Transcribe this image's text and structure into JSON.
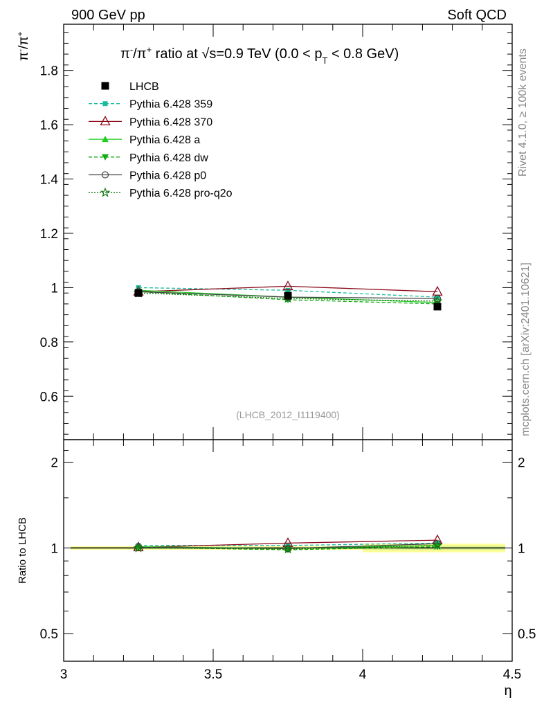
{
  "header": {
    "left": "900 GeV pp",
    "right": "Soft QCD"
  },
  "side_labels": {
    "rivet": "Rivet 4.1.0, ≥ 100k events",
    "mcplots": "mcplots.cern.ch [arXiv:2401.10621]"
  },
  "chart_data": [
    {
      "panel": "main",
      "type": "line",
      "title": "π⁻/π⁺ ratio at √s=0.9 TeV (0.0 < pT < 0.8 GeV)",
      "title_parts": {
        "prefix": "π",
        "sup1": "-",
        "mid": "/π",
        "sup2": "+",
        "text1": " ratio at ",
        "sqrt": "√s",
        "text2": "=0.9 TeV (0.0 < p",
        "sub": "T",
        "text3": " < 0.8 GeV)"
      },
      "ylabel_parts": {
        "a": "π",
        "a_sup": "-",
        "b": "/π",
        "b_sup": "+"
      },
      "xlabel": "η",
      "xlim": [
        3.0,
        4.5
      ],
      "ylim": [
        0.44,
        1.97
      ],
      "yticks": [
        0.6,
        0.8,
        1,
        1.2,
        1.4,
        1.6,
        1.8
      ],
      "ytick_labels": [
        "0.6",
        "0.8",
        "1",
        "1.2",
        "1.4",
        "1.6",
        "1.8"
      ],
      "watermark": "(LHCB_2012_I1119400)",
      "x": [
        3.25,
        3.75,
        4.25
      ],
      "series": [
        {
          "name": "LHCB",
          "values": [
            0.98,
            0.97,
            0.93
          ],
          "errors": [
            0.01,
            0.01,
            0.01
          ],
          "color": "#000000",
          "marker": "square",
          "line": "none"
        },
        {
          "name": "Pythia 6.428 359",
          "values": [
            1.0,
            0.99,
            0.965
          ],
          "color": "#1abc9c",
          "marker": "small-square",
          "line": "dashed"
        },
        {
          "name": "Pythia 6.428 370",
          "values": [
            0.985,
            1.005,
            0.985
          ],
          "color": "#8b0a1a",
          "marker": "open-triangle",
          "line": "solid"
        },
        {
          "name": "Pythia 6.428 a",
          "values": [
            0.99,
            0.965,
            0.945
          ],
          "color": "#22cc22",
          "marker": "triangle",
          "line": "solid"
        },
        {
          "name": "Pythia 6.428 dw",
          "values": [
            0.985,
            0.955,
            0.94
          ],
          "color": "#11aa11",
          "marker": "triangle-down",
          "line": "dashed"
        },
        {
          "name": "Pythia 6.428 p0",
          "values": [
            0.985,
            0.965,
            0.96
          ],
          "color": "#444444",
          "marker": "open-circle",
          "line": "solid"
        },
        {
          "name": "Pythia 6.428 pro-q2o",
          "values": [
            0.98,
            0.96,
            0.95
          ],
          "color": "#117711",
          "marker": "star",
          "line": "dotted"
        }
      ]
    },
    {
      "panel": "ratio",
      "type": "line",
      "ylabel": "Ratio to LHCB",
      "xlabel": "η",
      "xlim": [
        3.0,
        4.5
      ],
      "ylim": [
        0.4,
        2.4
      ],
      "yscale": "log",
      "yticks": [
        0.5,
        1,
        2
      ],
      "ytick_labels": [
        "0.5",
        "1",
        "2"
      ],
      "xticks": [
        3,
        3.5,
        4,
        4.5
      ],
      "xtick_labels": [
        "3",
        "3.5",
        "4",
        "4.5"
      ],
      "x": [
        3.25,
        3.75,
        4.25
      ],
      "band": {
        "x_edges": [
          3.0,
          3.5,
          4.0,
          4.5
        ],
        "half_width": [
          0.015,
          0.015,
          0.035
        ]
      },
      "series": [
        {
          "name": "Pythia 6.428 359",
          "values": [
            1.02,
            1.02,
            1.04
          ]
        },
        {
          "name": "Pythia 6.428 370",
          "values": [
            1.005,
            1.04,
            1.065
          ]
        },
        {
          "name": "Pythia 6.428 a",
          "values": [
            1.01,
            0.995,
            1.02
          ]
        },
        {
          "name": "Pythia 6.428 dw",
          "values": [
            1.005,
            0.985,
            1.01
          ]
        },
        {
          "name": "Pythia 6.428 p0",
          "values": [
            1.005,
            0.995,
            1.035
          ]
        },
        {
          "name": "Pythia 6.428 pro-q2o",
          "values": [
            1.0,
            0.99,
            1.02
          ]
        }
      ]
    }
  ]
}
